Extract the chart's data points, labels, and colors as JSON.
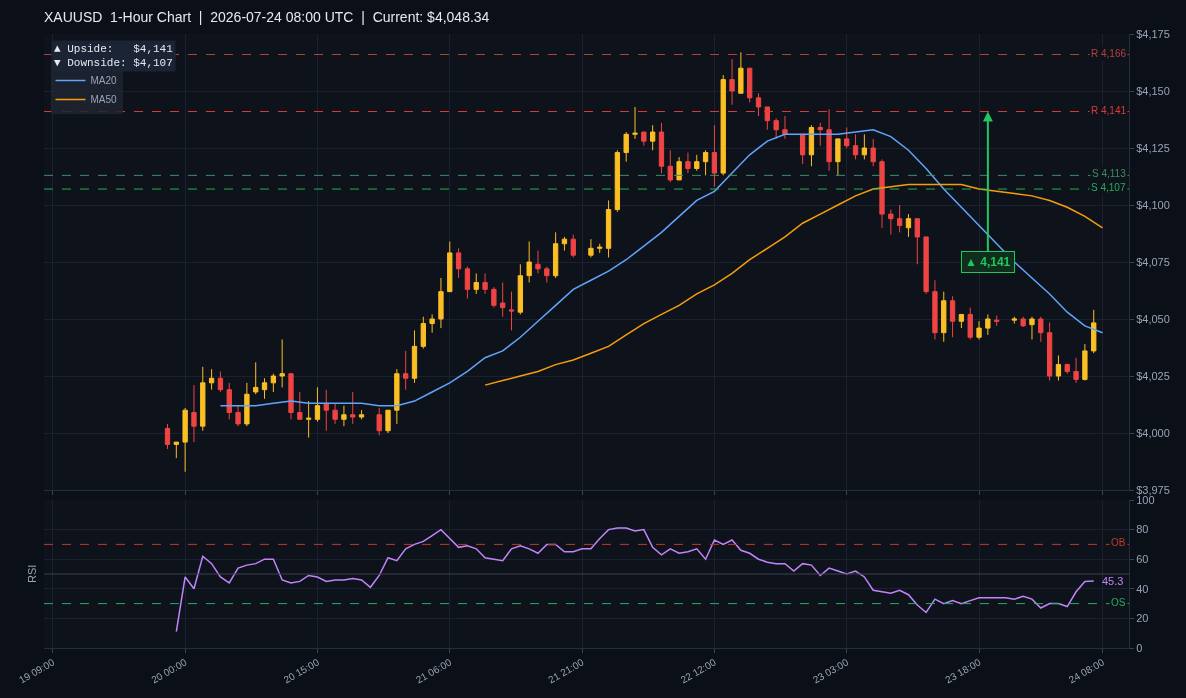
{
  "chart_data": [
    {
      "type": "candlestick",
      "title": "XAUUSD  1-Hour Chart  |  2026-07-24 08:00 UTC  |  Current: $4,048.34",
      "legend": "top left",
      "grid": true,
      "tick_labels": "y",
      "xlim": [
        "2026-07-19T08:00",
        "2026-07-24T11:00"
      ],
      "xticks": [
        {
          "value": "2026-07-19T09:00",
          "label": null
        },
        {
          "value": "2026-07-20T00:00",
          "label": null
        },
        {
          "value": "2026-07-20T15:00",
          "label": null
        },
        {
          "value": "2026-07-21T06:00",
          "label": null
        },
        {
          "value": "2026-07-21T21:00",
          "label": null
        },
        {
          "value": "2026-07-22T12:00",
          "label": null
        },
        {
          "value": "2026-07-23T03:00",
          "label": null
        },
        {
          "value": "2026-07-23T18:00",
          "label": null
        },
        {
          "value": "2026-07-24T08:00",
          "label": null
        }
      ],
      "ylim": [
        3975,
        4175
      ],
      "yticks": [
        {
          "value": 3975,
          "label": "$3,975"
        },
        {
          "value": 4000,
          "label": "$4,000"
        },
        {
          "value": 4025,
          "label": "$4,025"
        },
        {
          "value": 4050,
          "label": "$4,050"
        },
        {
          "value": 4075,
          "label": "$4,075"
        },
        {
          "value": 4100,
          "label": "$4,100"
        },
        {
          "value": 4125,
          "label": "$4,125"
        },
        {
          "value": 4150,
          "label": "$4,150"
        },
        {
          "value": 4175,
          "label": "$4,175"
        }
      ],
      "series": [
        {
          "type": "line",
          "name": "MA20",
          "color": "#60a5fa",
          "x": [
            "2026-07-20T04:00",
            "2026-07-20T06:00",
            "2026-07-20T08:00",
            "2026-07-20T10:00",
            "2026-07-20T12:00",
            "2026-07-20T14:00",
            "2026-07-20T16:00",
            "2026-07-20T18:00",
            "2026-07-20T20:00",
            "2026-07-20T22:00",
            "2026-07-21T00:00",
            "2026-07-21T02:00",
            "2026-07-21T04:00",
            "2026-07-21T06:00",
            "2026-07-21T08:00",
            "2026-07-21T10:00",
            "2026-07-21T12:00",
            "2026-07-21T14:00",
            "2026-07-21T16:00",
            "2026-07-21T18:00",
            "2026-07-21T20:00",
            "2026-07-21T22:00",
            "2026-07-22T00:00",
            "2026-07-22T02:00",
            "2026-07-22T04:00",
            "2026-07-22T06:00",
            "2026-07-22T08:00",
            "2026-07-22T10:00",
            "2026-07-22T12:00",
            "2026-07-22T14:00",
            "2026-07-22T16:00",
            "2026-07-22T18:00",
            "2026-07-22T20:00",
            "2026-07-22T22:00",
            "2026-07-23T00:00",
            "2026-07-23T02:00",
            "2026-07-23T04:00",
            "2026-07-23T06:00",
            "2026-07-23T08:00",
            "2026-07-23T10:00",
            "2026-07-23T12:00",
            "2026-07-23T14:00",
            "2026-07-23T16:00",
            "2026-07-23T18:00",
            "2026-07-23T20:00",
            "2026-07-23T22:00",
            "2026-07-24T00:00",
            "2026-07-24T02:00",
            "2026-07-24T04:00",
            "2026-07-24T06:00",
            "2026-07-24T08:00"
          ],
          "values": [
            4012,
            4012,
            4012,
            4013,
            4014,
            4013,
            4013,
            4013,
            4013,
            4012,
            4012,
            4014,
            4018,
            4022,
            4027,
            4033,
            4036,
            4042,
            4049,
            4056,
            4063,
            4067,
            4071,
            4076,
            4082,
            4088,
            4095,
            4102,
            4106,
            4114,
            4122,
            4128,
            4131,
            4131,
            4131,
            4131,
            4132,
            4133,
            4130,
            4124,
            4116,
            4107,
            4099,
            4091,
            4083,
            4075,
            4068,
            4061,
            4053,
            4047,
            4044
          ]
        },
        {
          "type": "line",
          "name": "MA50",
          "color": "#f59e0b",
          "x": [
            "2026-07-21T10:00",
            "2026-07-21T12:00",
            "2026-07-21T14:00",
            "2026-07-21T16:00",
            "2026-07-21T18:00",
            "2026-07-21T20:00",
            "2026-07-21T22:00",
            "2026-07-22T00:00",
            "2026-07-22T02:00",
            "2026-07-22T04:00",
            "2026-07-22T06:00",
            "2026-07-22T08:00",
            "2026-07-22T10:00",
            "2026-07-22T12:00",
            "2026-07-22T14:00",
            "2026-07-22T16:00",
            "2026-07-22T18:00",
            "2026-07-22T20:00",
            "2026-07-22T22:00",
            "2026-07-23T00:00",
            "2026-07-23T02:00",
            "2026-07-23T04:00",
            "2026-07-23T06:00",
            "2026-07-23T08:00",
            "2026-07-23T10:00",
            "2026-07-23T12:00",
            "2026-07-23T14:00",
            "2026-07-23T16:00",
            "2026-07-23T18:00",
            "2026-07-23T20:00",
            "2026-07-23T22:00",
            "2026-07-24T00:00",
            "2026-07-24T02:00",
            "2026-07-24T04:00",
            "2026-07-24T06:00",
            "2026-07-24T08:00"
          ],
          "values": [
            4021,
            4023,
            4025,
            4027,
            4030,
            4032,
            4035,
            4038,
            4043,
            4048,
            4052,
            4056,
            4061,
            4065,
            4070,
            4076,
            4081,
            4086,
            4092,
            4096,
            4100,
            4104,
            4107,
            4108,
            4109,
            4109,
            4109,
            4109,
            4107,
            4106,
            4105,
            4104,
            4102,
            4099,
            4095,
            4090
          ]
        },
        {
          "type": "candlestick",
          "colors": [
            "#ef4444",
            "#fbbf24",
            "#fbbf24",
            "#ef4444",
            "#fbbf24",
            "#fbbf24",
            "#ef4444",
            "#ef4444",
            "#ef4444",
            "#fbbf24",
            "#fbbf24",
            "#fbbf24",
            "#fbbf24",
            "#fbbf24",
            "#ef4444",
            "#ef4444",
            "#fbbf24",
            "#fbbf24",
            "#ef4444",
            "#ef4444",
            "#fbbf24",
            "#ef4444",
            "#fbbf24",
            "#ef4444",
            "#fbbf24",
            "#fbbf24",
            "#ef4444",
            "#fbbf24",
            "#fbbf24",
            "#fbbf24",
            "#fbbf24",
            "#fbbf24",
            "#ef4444",
            "#ef4444",
            "#fbbf24",
            "#ef4444",
            "#ef4444",
            "#ef4444",
            "#ef4444",
            "#fbbf24",
            "#fbbf24",
            "#ef4444",
            "#ef4444",
            "#fbbf24",
            "#fbbf24",
            "#ef4444",
            "#fbbf24",
            "#fbbf24",
            "#fbbf24",
            "#fbbf24",
            "#fbbf24",
            "#fbbf24",
            "#ef4444",
            "#fbbf24",
            "#ef4444",
            "#ef4444",
            "#fbbf24",
            "#ef4444",
            "#fbbf24",
            "#fbbf24",
            "#ef4444",
            "#fbbf24",
            "#ef4444",
            "#fbbf24",
            "#ef4444",
            "#ef4444",
            "#ef4444",
            "#ef4444",
            "#ef4444",
            "#ef4444",
            "#fbbf24",
            "#ef4444",
            "#ef4444",
            "#fbbf24",
            "#ef4444",
            "#ef4444",
            "#fbbf24",
            "#ef4444",
            "#ef4444",
            "#ef4444",
            "#ef4444",
            "#fbbf24",
            "#ef4444",
            "#ef4444",
            "#ef4444",
            "#fbbf24",
            "#ef4444",
            "#fbbf24",
            "#ef4444",
            "#fbbf24",
            "#fbbf24",
            "#ef4444",
            "#fbbf24",
            "#ef4444",
            "#fbbf24",
            "#ef4444",
            "#ef4444",
            "#fbbf24",
            "#ef4444",
            "#ef4444",
            "#fbbf24",
            "#fbbf24"
          ],
          "x": [
            "2026-07-19T22:00",
            "2026-07-19T23:00",
            "2026-07-20T00:00",
            "2026-07-20T01:00",
            "2026-07-20T02:00",
            "2026-07-20T03:00",
            "2026-07-20T04:00",
            "2026-07-20T05:00",
            "2026-07-20T06:00",
            "2026-07-20T07:00",
            "2026-07-20T08:00",
            "2026-07-20T09:00",
            "2026-07-20T10:00",
            "2026-07-20T11:00",
            "2026-07-20T12:00",
            "2026-07-20T13:00",
            "2026-07-20T14:00",
            "2026-07-20T15:00",
            "2026-07-20T16:00",
            "2026-07-20T17:00",
            "2026-07-20T18:00",
            "2026-07-20T19:00",
            "2026-07-20T20:00",
            "2026-07-20T22:00",
            "2026-07-20T23:00",
            "2026-07-21T00:00",
            "2026-07-21T01:00",
            "2026-07-21T02:00",
            "2026-07-21T03:00",
            "2026-07-21T04:00",
            "2026-07-21T05:00",
            "2026-07-21T06:00",
            "2026-07-21T07:00",
            "2026-07-21T08:00",
            "2026-07-21T09:00",
            "2026-07-21T10:00",
            "2026-07-21T11:00",
            "2026-07-21T12:00",
            "2026-07-21T13:00",
            "2026-07-21T14:00",
            "2026-07-21T15:00",
            "2026-07-21T16:00",
            "2026-07-21T17:00",
            "2026-07-21T18:00",
            "2026-07-21T19:00",
            "2026-07-21T20:00",
            "2026-07-21T22:00",
            "2026-07-21T23:00",
            "2026-07-22T00:00",
            "2026-07-22T01:00",
            "2026-07-22T02:00",
            "2026-07-22T03:00",
            "2026-07-22T04:00",
            "2026-07-22T05:00",
            "2026-07-22T06:00",
            "2026-07-22T07:00",
            "2026-07-22T08:00",
            "2026-07-22T09:00",
            "2026-07-22T10:00",
            "2026-07-22T11:00",
            "2026-07-22T12:00",
            "2026-07-22T13:00",
            "2026-07-22T14:00",
            "2026-07-22T15:00",
            "2026-07-22T16:00",
            "2026-07-22T17:00",
            "2026-07-22T18:00",
            "2026-07-22T19:00",
            "2026-07-22T20:00",
            "2026-07-22T22:00",
            "2026-07-22T23:00",
            "2026-07-23T00:00",
            "2026-07-23T01:00",
            "2026-07-23T02:00",
            "2026-07-23T03:00",
            "2026-07-23T04:00",
            "2026-07-23T05:00",
            "2026-07-23T06:00",
            "2026-07-23T07:00",
            "2026-07-23T08:00",
            "2026-07-23T09:00",
            "2026-07-23T10:00",
            "2026-07-23T11:00",
            "2026-07-23T12:00",
            "2026-07-23T13:00",
            "2026-07-23T14:00",
            "2026-07-23T15:00",
            "2026-07-23T16:00",
            "2026-07-23T17:00",
            "2026-07-23T18:00",
            "2026-07-23T19:00",
            "2026-07-23T20:00",
            "2026-07-23T22:00",
            "2026-07-23T23:00",
            "2026-07-24T00:00",
            "2026-07-24T01:00",
            "2026-07-24T02:00",
            "2026-07-24T03:00",
            "2026-07-24T04:00",
            "2026-07-24T05:00",
            "2026-07-24T06:00",
            "2026-07-24T07:00"
          ],
          "ohlc": [
            [
              4002,
              4004,
              3993,
              3995
            ],
            [
              3995,
              3996,
              3989,
              3996
            ],
            [
              3996,
              4011,
              3983,
              4010
            ],
            [
              4009,
              4021,
              3996,
              4003
            ],
            [
              4003,
              4029,
              4001,
              4022
            ],
            [
              4022,
              4028,
              4019,
              4024
            ],
            [
              4024,
              4027,
              4018,
              4019
            ],
            [
              4019,
              4022,
              4006,
              4009
            ],
            [
              4009,
              4012,
              4003,
              4004
            ],
            [
              4004,
              4022,
              4003,
              4017
            ],
            [
              4018,
              4031,
              4017,
              4020
            ],
            [
              4019,
              4024,
              4015,
              4022
            ],
            [
              4022,
              4026,
              4018,
              4025
            ],
            [
              4025,
              4041,
              4020,
              4026
            ],
            [
              4026,
              4026,
              4006,
              4009
            ],
            [
              4009,
              4018,
              4006,
              4006
            ],
            [
              4006,
              4014,
              3998,
              4006.5
            ],
            [
              4006,
              4020,
              4005,
              4012
            ],
            [
              4013,
              4019,
              4001,
              4010
            ],
            [
              4010,
              4013,
              4004,
              4006
            ],
            [
              4006,
              4012,
              4003,
              4008
            ],
            [
              4008,
              4018,
              4004,
              4007
            ],
            [
              4007,
              4010,
              4006,
              4008
            ],
            [
              4008,
              4011,
              3999,
              4001
            ],
            [
              4001,
              4010,
              4000,
              4010
            ],
            [
              4010,
              4028,
              4004,
              4026
            ],
            [
              4026,
              4036,
              4019,
              4024
            ],
            [
              4024,
              4045,
              4022,
              4038
            ],
            [
              4038,
              4051,
              4037,
              4048
            ],
            [
              4048,
              4052,
              4044,
              4050
            ],
            [
              4050,
              4068,
              4046,
              4062
            ],
            [
              4062,
              4084,
              4062,
              4079
            ],
            [
              4079,
              4081,
              4068,
              4072
            ],
            [
              4072,
              4073,
              4059,
              4063
            ],
            [
              4063,
              4070,
              4061,
              4066
            ],
            [
              4066,
              4070,
              4061,
              4063
            ],
            [
              4063,
              4064,
              4055,
              4056
            ],
            [
              4057,
              4066,
              4051,
              4055
            ],
            [
              4054,
              4062,
              4045,
              4053.5
            ],
            [
              4053,
              4074,
              4052,
              4069
            ],
            [
              4069,
              4084,
              4066,
              4075
            ],
            [
              4074,
              4080,
              4070,
              4072
            ],
            [
              4072,
              4073,
              4066,
              4069
            ],
            [
              4069,
              4088,
              4068,
              4083
            ],
            [
              4083,
              4086,
              4080,
              4085
            ],
            [
              4085,
              4087,
              4077,
              4078
            ],
            [
              4078,
              4085,
              4077,
              4081
            ],
            [
              4081,
              4083,
              4079,
              4081.5
            ],
            [
              4081,
              4102,
              4077,
              4098
            ],
            [
              4098,
              4124,
              4097,
              4123
            ],
            [
              4123,
              4132,
              4119,
              4131
            ],
            [
              4131,
              4143,
              4129,
              4131.5
            ],
            [
              4132,
              4132,
              4126,
              4128
            ],
            [
              4128,
              4135,
              4124,
              4132
            ],
            [
              4132,
              4136,
              4114,
              4117
            ],
            [
              4117,
              4124,
              4110,
              4111
            ],
            [
              4111,
              4121,
              4111,
              4119
            ],
            [
              4119,
              4123,
              4114,
              4116
            ],
            [
              4116,
              4122,
              4115,
              4119
            ],
            [
              4119,
              4124,
              4113,
              4123
            ],
            [
              4123,
              4135,
              4108,
              4114
            ],
            [
              4114,
              4157,
              4113,
              4155
            ],
            [
              4155,
              4164,
              4144,
              4150
            ],
            [
              4149,
              4167,
              4149,
              4160
            ],
            [
              4160,
              4160,
              4145,
              4147
            ],
            [
              4147,
              4149,
              4139,
              4143
            ],
            [
              4143,
              4143,
              4133,
              4137
            ],
            [
              4137,
              4138,
              4129,
              4133
            ],
            [
              4133,
              4139,
              4129,
              4131
            ],
            [
              4131,
              4131,
              4118,
              4122
            ],
            [
              4122,
              4135,
              4117,
              4134
            ],
            [
              4134,
              4136,
              4126,
              4133
            ],
            [
              4133,
              4142,
              4115,
              4119
            ],
            [
              4119,
              4129,
              4113,
              4129
            ],
            [
              4129,
              4134,
              4125,
              4126
            ],
            [
              4126,
              4131,
              4120,
              4122
            ],
            [
              4122,
              4131,
              4120,
              4125
            ],
            [
              4125,
              4129,
              4117,
              4119
            ],
            [
              4119,
              4120,
              4090,
              4096
            ],
            [
              4096,
              4098,
              4087,
              4094
            ],
            [
              4094,
              4100,
              4088,
              4091
            ],
            [
              4090,
              4096,
              4086,
              4094
            ],
            [
              4094,
              4094,
              4074,
              4086
            ],
            [
              4086,
              4086,
              4061,
              4062
            ],
            [
              4062,
              4067,
              4041,
              4044
            ],
            [
              4044,
              4062,
              4040,
              4058
            ],
            [
              4058,
              4060,
              4042,
              4049
            ],
            [
              4049,
              4052,
              4046,
              4052
            ],
            [
              4052,
              4055,
              4041,
              4042
            ],
            [
              4042,
              4049,
              4041,
              4046
            ],
            [
              4046,
              4052,
              4043,
              4050
            ],
            [
              4049.5,
              4051.5,
              4047,
              4049
            ],
            [
              4049.5,
              4051,
              4048,
              4050
            ],
            [
              4050,
              4051,
              4046.5,
              4047
            ],
            [
              4047.5,
              4051,
              4041,
              4050
            ],
            [
              4050,
              4051,
              4040,
              4044
            ],
            [
              4044,
              4048.5,
              4023,
              4025
            ],
            [
              4025,
              4034,
              4023,
              4030
            ],
            [
              4030,
              4030.5,
              4026,
              4027
            ],
            [
              4027,
              4033,
              4022,
              4023.5
            ],
            [
              4023.5,
              4039,
              4023,
              4036
            ],
            [
              4036,
              4054,
              4035,
              4048.3
            ]
          ]
        }
      ],
      "ref_lines": [
        {
          "axis": "y",
          "value": 4166,
          "label": "R 4,166",
          "color": "#b64040",
          "line_style": "dashed"
        },
        {
          "axis": "y",
          "value": 4141,
          "label": "R 4,141",
          "color": "#dc3b3b",
          "line_style": "dashed"
        },
        {
          "axis": "y",
          "value": 4113,
          "label": "S 4,113",
          "color": "#3d8f67",
          "line_style": "dashed"
        },
        {
          "axis": "y",
          "value": 4107,
          "label": "S 4,107",
          "color": "#22b05a",
          "line_style": "dashed"
        }
      ],
      "annotations": [
        "▲ Upside:   $4,141",
        "▼ Downside: $4,107",
        {
          "text": "▲ 4,141",
          "x": "2026-07-23T19:00",
          "y": 4141
        }
      ]
    },
    {
      "type": "line",
      "ylabel": "RSI",
      "grid": true,
      "xlim": [
        "2026-07-19T08:00",
        "2026-07-24T11:00"
      ],
      "xticks": [
        {
          "value": "2026-07-19T09:00",
          "label": "19 09:00"
        },
        {
          "value": "2026-07-20T00:00",
          "label": "20 00:00"
        },
        {
          "value": "2026-07-20T15:00",
          "label": "20 15:00"
        },
        {
          "value": "2026-07-21T06:00",
          "label": "21 06:00"
        },
        {
          "value": "2026-07-21T21:00",
          "label": "21 21:00"
        },
        {
          "value": "2026-07-22T12:00",
          "label": "22 12:00"
        },
        {
          "value": "2026-07-23T03:00",
          "label": "23 03:00"
        },
        {
          "value": "2026-07-23T18:00",
          "label": "23 18:00"
        },
        {
          "value": "2026-07-24T08:00",
          "label": "24 08:00"
        }
      ],
      "ylim": [
        0,
        100
      ],
      "yticks": [
        0,
        20,
        40,
        60,
        80,
        100
      ],
      "series": [
        {
          "color": "#c084fc",
          "x": [
            "2026-07-19T23:00",
            "2026-07-20T00:00",
            "2026-07-20T01:00",
            "2026-07-20T02:00",
            "2026-07-20T03:00",
            "2026-07-20T04:00",
            "2026-07-20T05:00",
            "2026-07-20T06:00",
            "2026-07-20T07:00",
            "2026-07-20T08:00",
            "2026-07-20T09:00",
            "2026-07-20T10:00",
            "2026-07-20T11:00",
            "2026-07-20T12:00",
            "2026-07-20T13:00",
            "2026-07-20T14:00",
            "2026-07-20T15:00",
            "2026-07-20T16:00",
            "2026-07-20T17:00",
            "2026-07-20T18:00",
            "2026-07-20T19:00",
            "2026-07-20T20:00",
            "2026-07-20T21:00",
            "2026-07-20T22:00",
            "2026-07-20T23:00",
            "2026-07-21T00:00",
            "2026-07-21T01:00",
            "2026-07-21T02:00",
            "2026-07-21T03:00",
            "2026-07-21T04:00",
            "2026-07-21T05:00",
            "2026-07-21T06:00",
            "2026-07-21T07:00",
            "2026-07-21T08:00",
            "2026-07-21T09:00",
            "2026-07-21T10:00",
            "2026-07-21T11:00",
            "2026-07-21T12:00",
            "2026-07-21T13:00",
            "2026-07-21T14:00",
            "2026-07-21T15:00",
            "2026-07-21T16:00",
            "2026-07-21T17:00",
            "2026-07-21T18:00",
            "2026-07-21T19:00",
            "2026-07-21T20:00",
            "2026-07-21T21:00",
            "2026-07-21T22:00",
            "2026-07-21T23:00",
            "2026-07-22T00:00",
            "2026-07-22T01:00",
            "2026-07-22T02:00",
            "2026-07-22T03:00",
            "2026-07-22T04:00",
            "2026-07-22T05:00",
            "2026-07-22T06:00",
            "2026-07-22T07:00",
            "2026-07-22T08:00",
            "2026-07-22T09:00",
            "2026-07-22T10:00",
            "2026-07-22T11:00",
            "2026-07-22T12:00",
            "2026-07-22T13:00",
            "2026-07-22T14:00",
            "2026-07-22T15:00",
            "2026-07-22T16:00",
            "2026-07-22T17:00",
            "2026-07-22T18:00",
            "2026-07-22T19:00",
            "2026-07-22T20:00",
            "2026-07-22T21:00",
            "2026-07-22T22:00",
            "2026-07-22T23:00",
            "2026-07-23T00:00",
            "2026-07-23T01:00",
            "2026-07-23T02:00",
            "2026-07-23T03:00",
            "2026-07-23T04:00",
            "2026-07-23T05:00",
            "2026-07-23T06:00",
            "2026-07-23T07:00",
            "2026-07-23T08:00",
            "2026-07-23T09:00",
            "2026-07-23T10:00",
            "2026-07-23T11:00",
            "2026-07-23T12:00",
            "2026-07-23T13:00",
            "2026-07-23T14:00",
            "2026-07-23T15:00",
            "2026-07-23T16:00",
            "2026-07-23T17:00",
            "2026-07-23T18:00",
            "2026-07-23T19:00",
            "2026-07-23T20:00",
            "2026-07-23T21:00",
            "2026-07-23T22:00",
            "2026-07-23T23:00",
            "2026-07-24T00:00",
            "2026-07-24T01:00",
            "2026-07-24T02:00",
            "2026-07-24T03:00",
            "2026-07-24T04:00",
            "2026-07-24T05:00",
            "2026-07-24T06:00",
            "2026-07-24T07:00"
          ],
          "values": [
            11,
            48,
            40,
            62,
            57,
            48,
            44,
            54,
            56,
            57,
            60,
            60,
            46,
            44,
            45,
            49,
            48,
            45,
            46,
            46,
            47,
            46,
            41,
            49,
            61,
            59,
            67,
            70,
            72,
            76,
            80,
            74,
            68,
            69,
            67,
            61,
            60,
            59,
            67,
            69,
            67,
            64,
            70,
            70,
            65,
            65,
            67,
            67,
            74,
            80,
            81,
            81,
            79,
            80,
            68,
            63,
            67,
            64,
            65,
            67,
            60,
            73,
            70,
            73,
            66,
            64,
            60,
            58,
            57,
            57,
            52,
            57,
            56,
            49,
            54,
            52,
            50,
            52,
            48,
            39,
            38,
            37,
            39,
            36,
            29,
            24,
            33,
            30,
            32,
            30,
            32,
            34,
            34,
            34,
            34,
            33,
            35,
            33,
            27,
            30,
            30,
            28,
            38,
            45,
            45.3
          ]
        }
      ],
      "ref_lines": [
        {
          "axis": "y",
          "value": 70,
          "label": "OB",
          "color": "#c0392b",
          "line_style": "dashed"
        },
        {
          "axis": "y",
          "value": 30,
          "label": "OS",
          "color": "#27ae60",
          "line_style": "dashed"
        },
        {
          "axis": "y",
          "value": 50,
          "color": "#3a4150",
          "line_style": "solid"
        }
      ],
      "annotations": [
        {
          "text": "45.3",
          "x": "2026-07-24T07:00",
          "y": 45.3
        }
      ]
    }
  ]
}
